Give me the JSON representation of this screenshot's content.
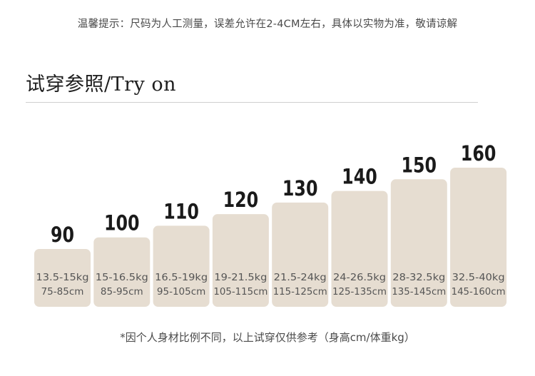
{
  "notice": "温馨提示：尺码为人工测量，误差允许在2-4CM左右，具体以实物为准，敬请谅解",
  "section_title": "试穿参照/Try on",
  "footnote": "*因个人身材比例不同，以上试穿仅供参考（身高cm/体重kg）",
  "colors": {
    "bar": "#e6ddd1",
    "size_label": "#1a1a1a",
    "detail_text": "#555555"
  },
  "chart_data": {
    "type": "bar",
    "categories": [
      "90",
      "100",
      "110",
      "120",
      "130",
      "140",
      "150",
      "160"
    ],
    "values": [
      90,
      100,
      110,
      120,
      130,
      140,
      150,
      160
    ],
    "weights": [
      "13.5-15kg",
      "15-16.5kg",
      "16.5-19kg",
      "19-21.5kg",
      "21.5-24kg",
      "24-26.5kg",
      "28-32.5kg",
      "32.5-40kg"
    ],
    "heights": [
      "75-85cm",
      "85-95cm",
      "95-105cm",
      "105-115cm",
      "115-125cm",
      "125-135cm",
      "135-145cm",
      "145-160cm"
    ],
    "title": "",
    "xlabel": "",
    "ylabel": "",
    "grid": false,
    "legend": "none"
  }
}
